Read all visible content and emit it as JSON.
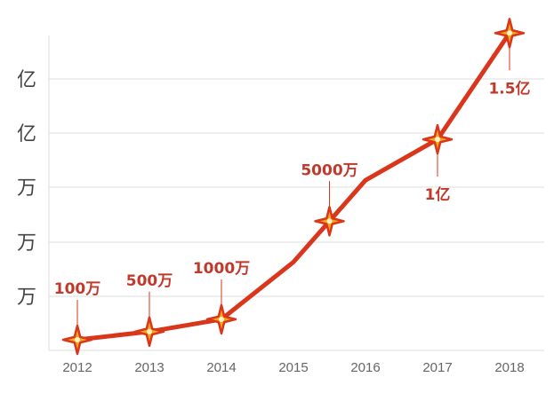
{
  "chart_data": {
    "type": "line",
    "title": "",
    "xlabel": "",
    "ylabel": "",
    "grid": true,
    "line_color": "#d9361c",
    "marker_fill": "#f2a81d",
    "marker_stroke": "#d9361c",
    "label_color": "#c0392b",
    "x_categories": [
      "2012",
      "2013",
      "2014",
      "2015",
      "2016",
      "2017",
      "2018"
    ],
    "y_tick_labels": [
      "亿",
      "亿",
      "万",
      "万",
      "万"
    ],
    "series": [
      {
        "points": [
          {
            "x": 2012.0,
            "y": 0.1
          },
          {
            "x": 2013.0,
            "y": 0.3
          },
          {
            "x": 2014.0,
            "y": 0.6
          },
          {
            "x": 2015.0,
            "y": 2.0
          },
          {
            "x": 2015.5,
            "y": 3.0
          },
          {
            "x": 2016.0,
            "y": 4.0
          },
          {
            "x": 2017.0,
            "y": 5.0
          },
          {
            "x": 2018.0,
            "y": 7.6
          }
        ],
        "markers": [
          0,
          1,
          2,
          4,
          6,
          7
        ]
      }
    ],
    "data_labels": [
      {
        "point": 0,
        "text": "100万"
      },
      {
        "point": 1,
        "text": "500万"
      },
      {
        "point": 2,
        "text": "1000万"
      },
      {
        "point": 4,
        "text": "5000万"
      },
      {
        "point": 6,
        "text": "1亿"
      },
      {
        "point": 7,
        "text": "1.5亿"
      }
    ]
  }
}
